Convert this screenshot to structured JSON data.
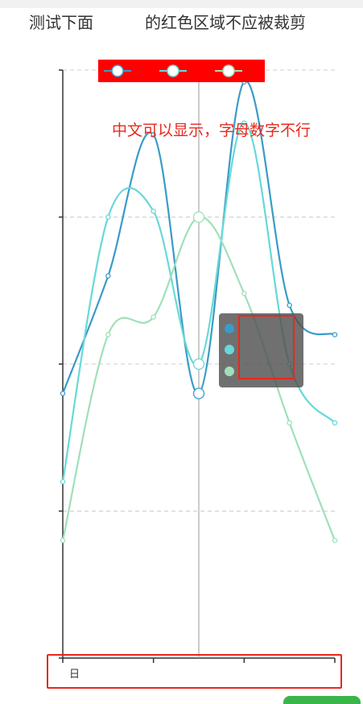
{
  "header": {
    "caption_left": "测试下面",
    "caption_right": "的红色区域不应被裁剪"
  },
  "note": "中文可以显示，字母数字不行",
  "chart_data": {
    "type": "line",
    "smooth": true,
    "categories": [
      "",
      "",
      "",
      "",
      "",
      "",
      ""
    ],
    "x_tick_label": "日",
    "ylim": [
      0,
      100
    ],
    "grid": true,
    "series": [
      {
        "color": "#3a9bc7",
        "values": [
          45,
          65,
          89,
          45,
          98,
          60,
          55
        ]
      },
      {
        "color": "#68d8d8",
        "values": [
          30,
          75,
          76,
          50,
          91,
          50,
          40
        ]
      },
      {
        "color": "#9fe0b9",
        "values": [
          20,
          55,
          58,
          75,
          62,
          40,
          20
        ]
      }
    ],
    "hover_index": 3,
    "legend": {
      "position": "top",
      "background": "#ff0000"
    },
    "colors": {
      "axis": "#333333",
      "grid": "#cccccc",
      "highlight": "#e8281d"
    }
  },
  "tooltip": {
    "dot_colors": [
      "#3a9bc7",
      "#68d8d8",
      "#9fe0b9"
    ]
  }
}
